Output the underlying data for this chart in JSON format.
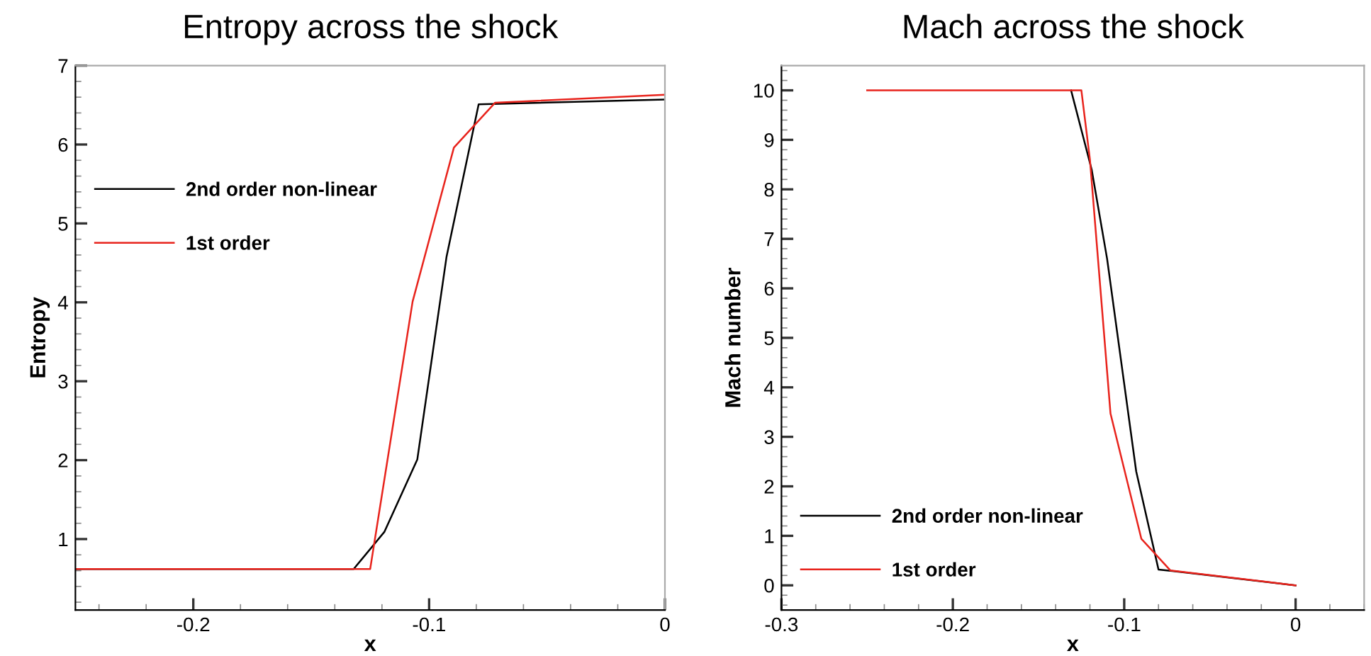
{
  "chart_data": [
    {
      "type": "line",
      "title": "Entropy across the shock",
      "xlabel": "x",
      "ylabel": "Entropy",
      "xlim": [
        -0.25,
        0
      ],
      "ylim": [
        0.1,
        7
      ],
      "xticks": [
        -0.2,
        -0.1,
        0
      ],
      "yticks": [
        1,
        2,
        3,
        4,
        5,
        6,
        7
      ],
      "grid": false,
      "legend": "left",
      "marker": "none",
      "line_style": "solid",
      "series": [
        {
          "name": "2nd order non-linear",
          "color": "#000000",
          "x": [
            -0.25,
            -0.132,
            -0.119,
            -0.105,
            -0.0926,
            -0.079,
            0
          ],
          "values": [
            0.62,
            0.62,
            1.09,
            2.01,
            4.58,
            6.51,
            6.57
          ]
        },
        {
          "name": "1st order",
          "color": "#e8231c",
          "x": [
            -0.25,
            -0.125,
            -0.107,
            -0.0895,
            -0.072,
            0
          ],
          "values": [
            0.62,
            0.62,
            4.01,
            5.96,
            6.53,
            6.63
          ]
        }
      ]
    },
    {
      "type": "line",
      "title": "Mach across the shock",
      "xlabel": "x",
      "ylabel": "Mach number",
      "xlim": [
        -0.3,
        0.04
      ],
      "ylim": [
        -0.5,
        10.5
      ],
      "xticks": [
        -0.3,
        -0.2,
        -0.1,
        0
      ],
      "yticks": [
        0,
        1,
        2,
        3,
        4,
        5,
        6,
        7,
        8,
        9,
        10
      ],
      "grid": false,
      "legend": "bottom left",
      "marker": "none",
      "line_style": "solid",
      "series": [
        {
          "name": "2nd order non-linear",
          "color": "#000000",
          "x": [
            -0.131,
            -0.119,
            -0.11,
            -0.093,
            -0.08,
            -0.072,
            0
          ],
          "values": [
            10,
            8.4,
            6.6,
            2.3,
            0.32,
            0.29,
            0
          ]
        },
        {
          "name": "1st order",
          "color": "#e8231c",
          "x": [
            -0.25,
            -0.125,
            -0.12,
            -0.108,
            -0.09,
            -0.073,
            0
          ],
          "values": [
            10,
            10,
            8.6,
            3.47,
            0.94,
            0.3,
            0
          ]
        }
      ]
    }
  ]
}
